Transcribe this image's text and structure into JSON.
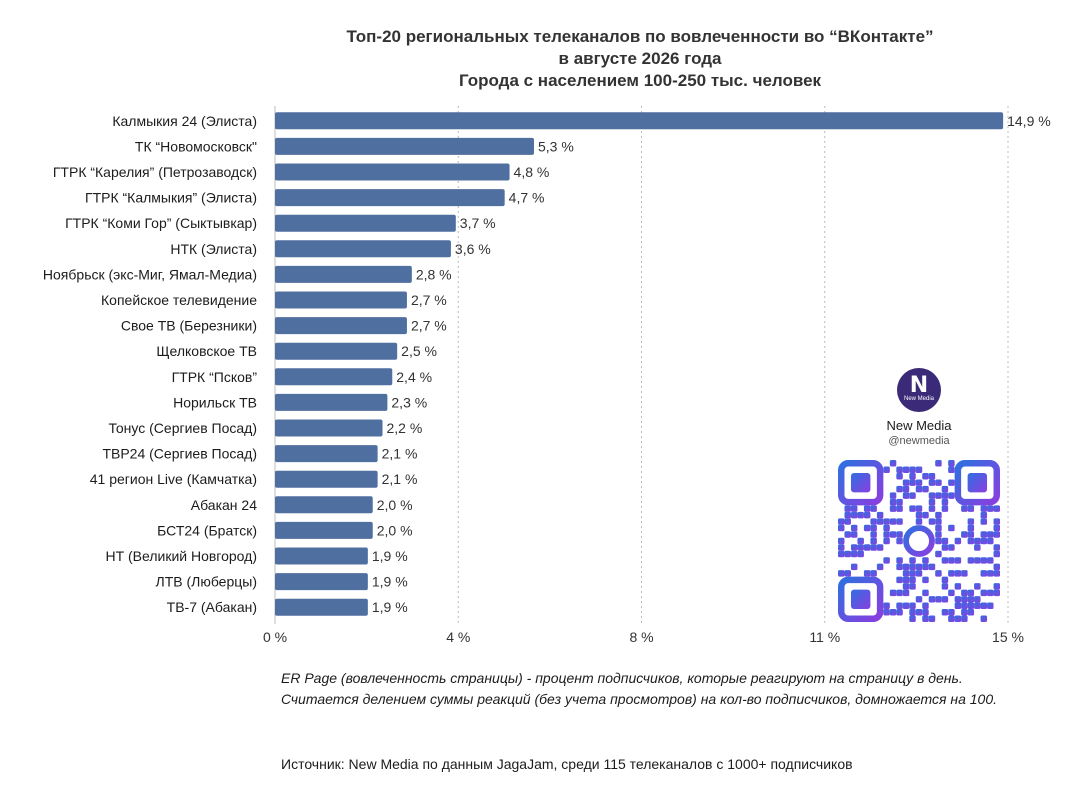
{
  "chart_data": {
    "type": "bar",
    "orientation": "horizontal",
    "title_lines": [
      "Топ-20 региональных телеканалов по вовлеченности во “ВКонтакте”",
      "в августе 2026 года",
      "Города с населением 100-250 тыс. человек"
    ],
    "categories": [
      "Калмыкия 24 (Элиста)",
      "ТК “Новомосковск\"",
      "ГТРК “Карелия” (Петрозаводск)",
      "ГТРК “Калмыкия” (Элиста)",
      "ГТРК “Коми Гор” (Сыктывкар)",
      "НТК (Элиста)",
      "Ноябрьск (экс-Миг, Ямал-Медиа)",
      "Копейское телевидение",
      "Свое ТВ (Березники)",
      "Щелковское ТВ",
      "ГТРК “Псков”",
      "Норильск ТВ",
      "Тонус (Сергиев Посад)",
      "ТВР24 (Сергиев Посад)",
      "41 регион Live (Камчатка)",
      "Абакан 24",
      "БСТ24 (Братск)",
      "НТ (Великий Новгород)",
      "ЛТВ (Люберцы)",
      "ТВ-7 (Абакан)"
    ],
    "values": [
      14.9,
      5.3,
      4.8,
      4.7,
      3.7,
      3.6,
      2.8,
      2.7,
      2.7,
      2.5,
      2.4,
      2.3,
      2.2,
      2.1,
      2.1,
      2.0,
      2.0,
      1.9,
      1.9,
      1.9
    ],
    "value_labels": [
      "14,9 %",
      "5,3 %",
      "4,8 %",
      "4,7 %",
      "3,7 %",
      "3,6 %",
      "2,8 %",
      "2,7 %",
      "2,7 %",
      "2,5 %",
      "2,4 %",
      "2,3 %",
      "2,2 %",
      "2,1 %",
      "2,1 %",
      "2,0 %",
      "2,0 %",
      "1,9 %",
      "1,9 %",
      "1,9 %"
    ],
    "x_ticks": [
      0,
      3.75,
      7.5,
      11.25,
      15
    ],
    "x_tick_labels": [
      "0 %",
      "4 %",
      "8 %",
      "11 %",
      "15 %"
    ],
    "xlim": [
      0,
      15
    ],
    "grid": "vertical-dotted",
    "bar_color": "#4e6f9f"
  },
  "brand": {
    "logo_text": "N",
    "logo_subtext": "New Media",
    "name": "New Media",
    "handle": "@newmedia",
    "logo_color": "#3a2a78",
    "qr_gradient": [
      "#2f6fe0",
      "#8a3ee0"
    ]
  },
  "notes": {
    "definition": "ER Page (вовлеченность страницы) - процент подписчиков, которые реагируют на страницу в день. Считается делением суммы реакций (без учета просмотров) на кол-во подписчиков, домножается на 100.",
    "source": "Источник: New Media по данным JagaJam, среди 115 телеканалов с 1000+ подписчиков"
  }
}
